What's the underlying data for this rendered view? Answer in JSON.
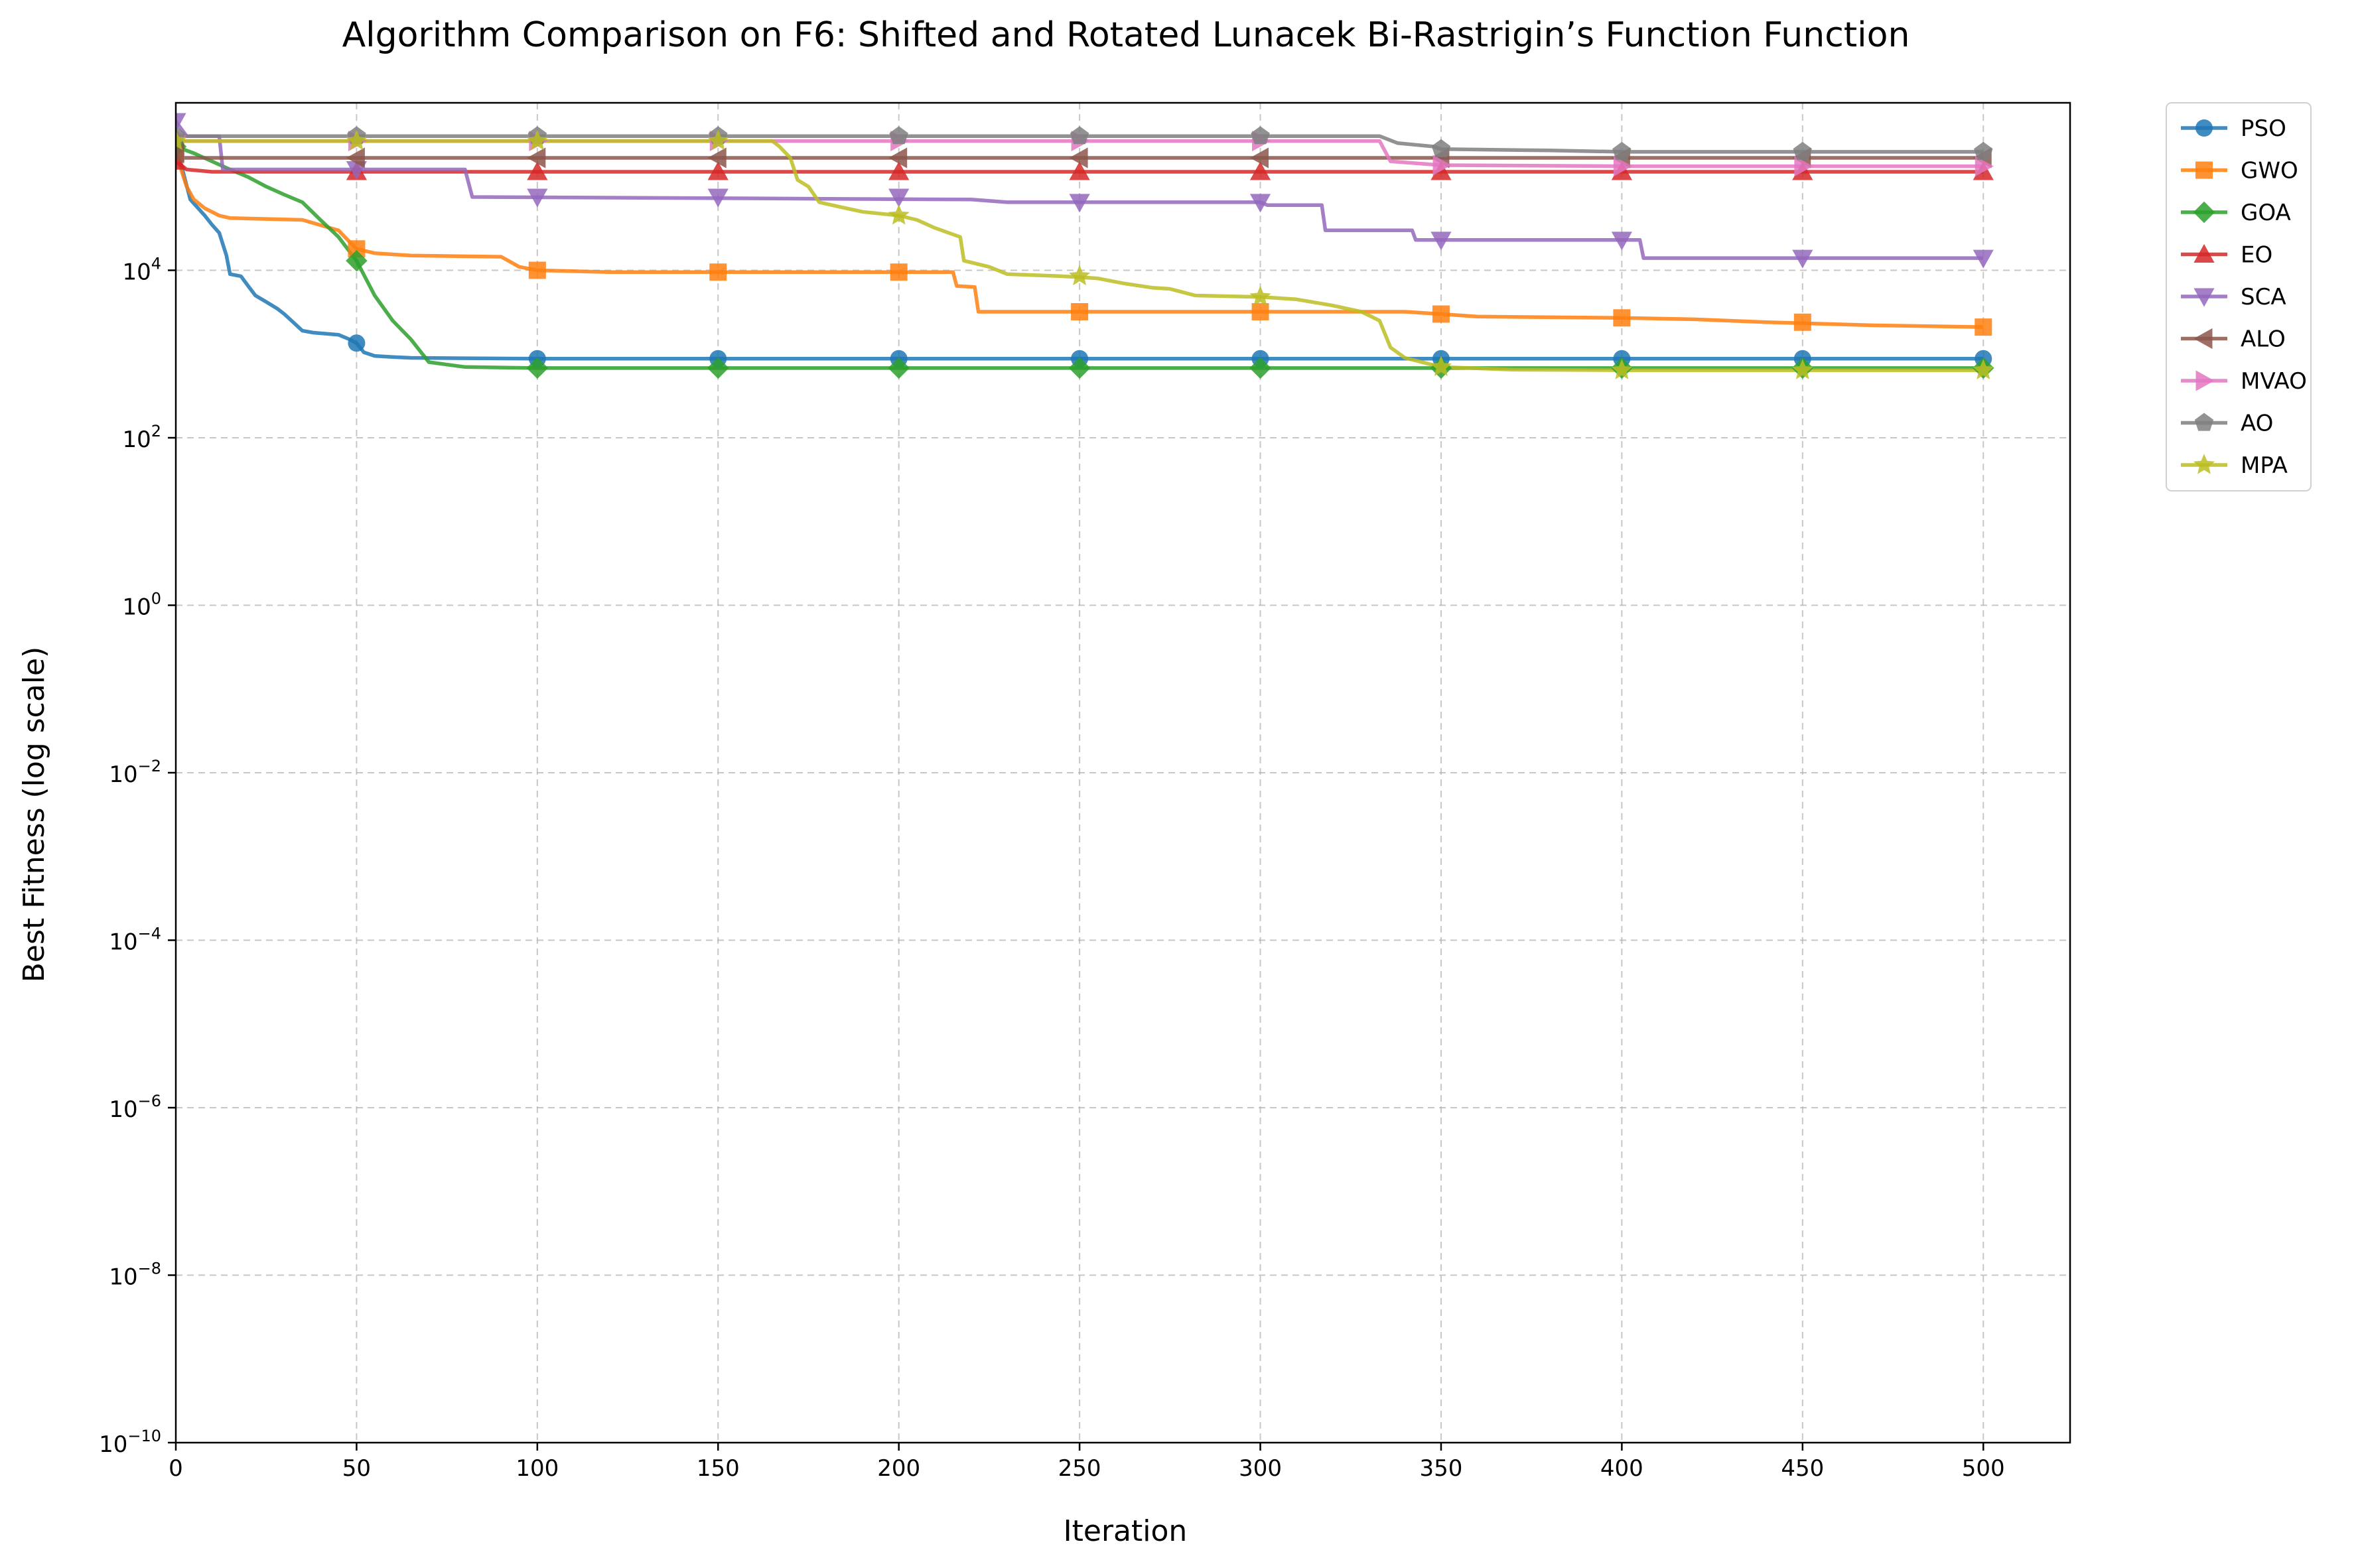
{
  "chart_data": {
    "type": "line",
    "title": "Algorithm Comparison on F6: Shifted and Rotated Lunacek Bi-Rastrigin’s Function Function",
    "xlabel": "Iteration",
    "ylabel": "Best Fitness (log scale)",
    "xlim": [
      0,
      524
    ],
    "ylim": [
      1e-10,
      1000000.0
    ],
    "yscale": "log",
    "grid": true,
    "legend_position": "outside-top-right",
    "x_ticks": [
      0,
      50,
      100,
      150,
      200,
      250,
      300,
      350,
      400,
      450,
      500
    ],
    "x_tick_labels": [
      "0",
      "50",
      "100",
      "150",
      "200",
      "250",
      "300",
      "350",
      "400",
      "450",
      "500"
    ],
    "y_ticks": [
      -10,
      -8,
      -6,
      -4,
      -2,
      0,
      2,
      4
    ],
    "y_tick_bases": [
      "10",
      "10",
      "10",
      "10",
      "10",
      "10",
      "10",
      "10"
    ],
    "y_tick_exponents": [
      "−10",
      "−8",
      "−6",
      "−4",
      "−2",
      "0",
      "2",
      "4"
    ],
    "marker_x": [
      0,
      50,
      100,
      150,
      200,
      250,
      300,
      350,
      400,
      450,
      500
    ],
    "series": [
      {
        "name": "PSO",
        "color": "#1f77b4",
        "marker": "circle",
        "points": [
          [
            0,
            300000
          ],
          [
            2,
            150000
          ],
          [
            4,
            70000
          ],
          [
            8,
            45000
          ],
          [
            10,
            35000
          ],
          [
            12,
            28000
          ],
          [
            14,
            15000
          ],
          [
            15,
            9000
          ],
          [
            18,
            8500
          ],
          [
            20,
            6500
          ],
          [
            22,
            5000
          ],
          [
            25,
            4200
          ],
          [
            28,
            3500
          ],
          [
            30,
            3000
          ],
          [
            32,
            2500
          ],
          [
            35,
            1900
          ],
          [
            38,
            1800
          ],
          [
            45,
            1700
          ],
          [
            48,
            1500
          ],
          [
            50,
            1350
          ],
          [
            52,
            1050
          ],
          [
            55,
            950
          ],
          [
            60,
            920
          ],
          [
            65,
            900
          ],
          [
            80,
            890
          ],
          [
            100,
            880
          ],
          [
            200,
            880
          ],
          [
            300,
            880
          ],
          [
            400,
            880
          ],
          [
            500,
            880
          ]
        ],
        "marker_y": [
          300000,
          1350,
          880,
          880,
          880,
          880,
          880,
          880,
          880,
          880,
          880
        ]
      },
      {
        "name": "GWO",
        "color": "#ff7f0e",
        "marker": "square",
        "points": [
          [
            0,
            250000
          ],
          [
            3,
            100000
          ],
          [
            5,
            70000
          ],
          [
            8,
            55000
          ],
          [
            12,
            45000
          ],
          [
            15,
            42000
          ],
          [
            25,
            41000
          ],
          [
            35,
            40000
          ],
          [
            45,
            30000
          ],
          [
            48,
            22000
          ],
          [
            50,
            18000
          ],
          [
            55,
            16000
          ],
          [
            65,
            15000
          ],
          [
            90,
            14500
          ],
          [
            95,
            11000
          ],
          [
            100,
            10000
          ],
          [
            120,
            9500
          ],
          [
            215,
            9500
          ],
          [
            216,
            6500
          ],
          [
            221,
            6300
          ],
          [
            222,
            3200
          ],
          [
            340,
            3200
          ],
          [
            350,
            3000
          ],
          [
            360,
            2800
          ],
          [
            400,
            2700
          ],
          [
            420,
            2600
          ],
          [
            440,
            2400
          ],
          [
            470,
            2200
          ],
          [
            500,
            2100
          ]
        ],
        "marker_y": [
          250000,
          18000,
          10000,
          9500,
          9500,
          3200,
          3200,
          3000,
          2700,
          2400,
          2100
        ]
      },
      {
        "name": "GOA",
        "color": "#2ca02c",
        "marker": "diamond",
        "points": [
          [
            0,
            300000
          ],
          [
            5,
            250000
          ],
          [
            10,
            200000
          ],
          [
            15,
            160000
          ],
          [
            20,
            130000
          ],
          [
            25,
            100000
          ],
          [
            30,
            80000
          ],
          [
            35,
            65000
          ],
          [
            40,
            40000
          ],
          [
            45,
            25000
          ],
          [
            50,
            13000
          ],
          [
            55,
            5000
          ],
          [
            60,
            2500
          ],
          [
            65,
            1500
          ],
          [
            70,
            800
          ],
          [
            80,
            700
          ],
          [
            100,
            680
          ],
          [
            150,
            680
          ],
          [
            200,
            680
          ],
          [
            300,
            680
          ],
          [
            400,
            680
          ],
          [
            500,
            680
          ]
        ],
        "marker_y": [
          300000,
          13000,
          680,
          680,
          680,
          680,
          680,
          680,
          680,
          680,
          680
        ]
      },
      {
        "name": "EO",
        "color": "#d62728",
        "marker": "triangle-up",
        "points": [
          [
            0,
            200000
          ],
          [
            3,
            160000
          ],
          [
            10,
            150000
          ],
          [
            100,
            150000
          ],
          [
            200,
            150000
          ],
          [
            300,
            150000
          ],
          [
            400,
            150000
          ],
          [
            500,
            150000
          ]
        ],
        "marker_y": [
          200000,
          150000,
          150000,
          150000,
          150000,
          150000,
          150000,
          150000,
          150000,
          150000,
          150000
        ]
      },
      {
        "name": "SCA",
        "color": "#9467bd",
        "marker": "triangle-down",
        "points": [
          [
            0,
            600000
          ],
          [
            3,
            400000
          ],
          [
            12,
            400000
          ],
          [
            13,
            160000
          ],
          [
            80,
            160000
          ],
          [
            82,
            75000
          ],
          [
            220,
            70000
          ],
          [
            230,
            65000
          ],
          [
            300,
            65000
          ],
          [
            302,
            60000
          ],
          [
            317,
            60000
          ],
          [
            318,
            30000
          ],
          [
            342,
            30000
          ],
          [
            343,
            23000
          ],
          [
            405,
            23000
          ],
          [
            406,
            14000
          ],
          [
            500,
            14000
          ]
        ],
        "marker_y": [
          600000,
          160000,
          75000,
          75000,
          75000,
          65000,
          65000,
          23000,
          23000,
          14000,
          14000
        ]
      },
      {
        "name": "ALO",
        "color": "#8c564b",
        "marker": "triangle-left",
        "points": [
          [
            0,
            250000
          ],
          [
            2,
            220000
          ],
          [
            100,
            220000
          ],
          [
            200,
            220000
          ],
          [
            300,
            220000
          ],
          [
            400,
            220000
          ],
          [
            500,
            220000
          ]
        ],
        "marker_y": [
          250000,
          220000,
          220000,
          220000,
          220000,
          220000,
          220000,
          220000,
          220000,
          220000,
          220000
        ]
      },
      {
        "name": "MVAO",
        "color": "#e377c2",
        "marker": "triangle-right",
        "points": [
          [
            0,
            400000
          ],
          [
            2,
            350000
          ],
          [
            100,
            350000
          ],
          [
            200,
            350000
          ],
          [
            300,
            350000
          ],
          [
            333,
            350000
          ],
          [
            336,
            200000
          ],
          [
            350,
            180000
          ],
          [
            400,
            175000
          ],
          [
            500,
            175000
          ]
        ],
        "marker_y": [
          400000,
          350000,
          350000,
          350000,
          350000,
          350000,
          350000,
          180000,
          175000,
          175000,
          175000
        ]
      },
      {
        "name": "AO",
        "color": "#7f7f7f",
        "marker": "pentagon",
        "points": [
          [
            0,
            400000
          ],
          [
            100,
            400000
          ],
          [
            200,
            400000
          ],
          [
            300,
            400000
          ],
          [
            333,
            400000
          ],
          [
            338,
            330000
          ],
          [
            348,
            300000
          ],
          [
            350,
            280000
          ],
          [
            380,
            270000
          ],
          [
            400,
            260000
          ],
          [
            450,
            260000
          ],
          [
            500,
            260000
          ]
        ],
        "marker_y": [
          400000,
          400000,
          400000,
          400000,
          400000,
          400000,
          400000,
          280000,
          260000,
          260000,
          260000
        ]
      },
      {
        "name": "MPA",
        "color": "#bcbd22",
        "marker": "star",
        "points": [
          [
            0,
            350000
          ],
          [
            100,
            350000
          ],
          [
            165,
            350000
          ],
          [
            167,
            300000
          ],
          [
            170,
            220000
          ],
          [
            172,
            120000
          ],
          [
            175,
            100000
          ],
          [
            178,
            65000
          ],
          [
            183,
            58000
          ],
          [
            190,
            50000
          ],
          [
            200,
            45000
          ],
          [
            205,
            40000
          ],
          [
            210,
            32000
          ],
          [
            217,
            25000
          ],
          [
            218,
            13000
          ],
          [
            225,
            11000
          ],
          [
            230,
            9000
          ],
          [
            245,
            8500
          ],
          [
            255,
            8000
          ],
          [
            262,
            7000
          ],
          [
            270,
            6200
          ],
          [
            275,
            6000
          ],
          [
            282,
            5000
          ],
          [
            300,
            4800
          ],
          [
            310,
            4500
          ],
          [
            320,
            3800
          ],
          [
            328,
            3200
          ],
          [
            333,
            2500
          ],
          [
            336,
            1200
          ],
          [
            340,
            900
          ],
          [
            350,
            700
          ],
          [
            370,
            650
          ],
          [
            400,
            640
          ],
          [
            450,
            640
          ],
          [
            500,
            640
          ]
        ],
        "marker_y": [
          350000,
          350000,
          350000,
          350000,
          45000,
          8500,
          4800,
          700,
          640,
          640,
          640
        ]
      }
    ]
  }
}
